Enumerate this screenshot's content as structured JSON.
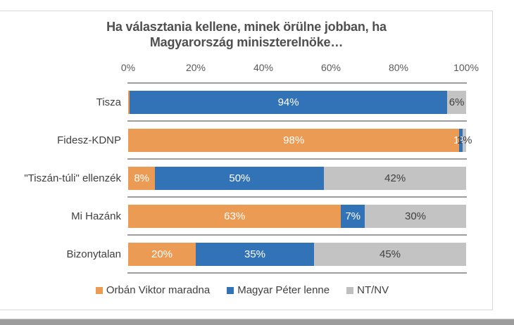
{
  "title": {
    "line1": "Ha választania kellene, minek örülne jobban, ha",
    "line2": "Magyarország miniszterelnöke…"
  },
  "axis": {
    "ticks": [
      "0%",
      "20%",
      "40%",
      "60%",
      "80%",
      "100%"
    ]
  },
  "colors": {
    "orange": "#ec9b54",
    "blue": "#3273b8",
    "gray": "#c3c3c3",
    "label_light": "#ffffff",
    "label_dark": "#404040",
    "gridline": "#9e9e9e",
    "legend_gray_swatch": "#bfbfbf"
  },
  "legend": [
    {
      "label": "Orbán Viktor maradna",
      "color_key": "orange"
    },
    {
      "label": "Magyar Péter lenne",
      "color_key": "blue"
    },
    {
      "label": "NT/NV",
      "color_key": "legend_gray_swatch"
    }
  ],
  "chart_data": {
    "type": "bar",
    "orientation": "horizontal",
    "stacked": true,
    "title": "Ha választania kellene, minek örülne jobban, ha Magyarország miniszterelnöke…",
    "categories": [
      "Tisza",
      "Fidesz-KDNP",
      "\"Tiszán-túli\" ellenzék",
      "Mi Hazánk",
      "Bizonytalan"
    ],
    "series": [
      {
        "name": "Orbán Viktor maradna",
        "values": [
          0,
          98,
          8,
          63,
          20
        ]
      },
      {
        "name": "Magyar Péter lenne",
        "values": [
          94,
          1,
          50,
          7,
          35
        ]
      },
      {
        "name": "NT/NV",
        "values": [
          6,
          1,
          42,
          30,
          45
        ]
      }
    ],
    "xlim": [
      0,
      100
    ],
    "x_tick_labels": [
      "0%",
      "20%",
      "40%",
      "60%",
      "80%",
      "100%"
    ],
    "legend_position": "bottom",
    "grid": "category-boundaries"
  },
  "rows": [
    {
      "category": "Tisza",
      "segments": [
        {
          "color_key": "orange",
          "value": 0,
          "wpx": 2,
          "label": "%",
          "label_key": "label_light",
          "align": "left"
        },
        {
          "color_key": "blue",
          "value": 94,
          "label": "94%",
          "label_key": "label_light"
        },
        {
          "color_key": "gray",
          "value": 6,
          "label": "6%",
          "label_key": "label_dark"
        }
      ]
    },
    {
      "category": "Fidesz-KDNP",
      "segments": [
        {
          "color_key": "orange",
          "value": 98,
          "label": "98%",
          "label_key": "label_light"
        },
        {
          "color_key": "blue",
          "value": 1,
          "label": "1%",
          "label_key": "label_light"
        },
        {
          "color_key": "gray",
          "value": 1,
          "label": "1%",
          "label_key": "label_dark"
        }
      ]
    },
    {
      "category": "\"Tiszán-túli\" ellenzék",
      "segments": [
        {
          "color_key": "orange",
          "value": 8,
          "label": "8%",
          "label_key": "label_light"
        },
        {
          "color_key": "blue",
          "value": 50,
          "label": "50%",
          "label_key": "label_light"
        },
        {
          "color_key": "gray",
          "value": 42,
          "label": "42%",
          "label_key": "label_dark"
        }
      ]
    },
    {
      "category": "Mi Hazánk",
      "segments": [
        {
          "color_key": "orange",
          "value": 63,
          "label": "63%",
          "label_key": "label_light"
        },
        {
          "color_key": "blue",
          "value": 7,
          "label": "7%",
          "label_key": "label_light"
        },
        {
          "color_key": "gray",
          "value": 30,
          "label": "30%",
          "label_key": "label_dark"
        }
      ]
    },
    {
      "category": "Bizonytalan",
      "segments": [
        {
          "color_key": "orange",
          "value": 20,
          "label": "20%",
          "label_key": "label_light"
        },
        {
          "color_key": "blue",
          "value": 35,
          "label": "35%",
          "label_key": "label_light"
        },
        {
          "color_key": "gray",
          "value": 45,
          "label": "45%",
          "label_key": "label_dark"
        }
      ]
    }
  ]
}
